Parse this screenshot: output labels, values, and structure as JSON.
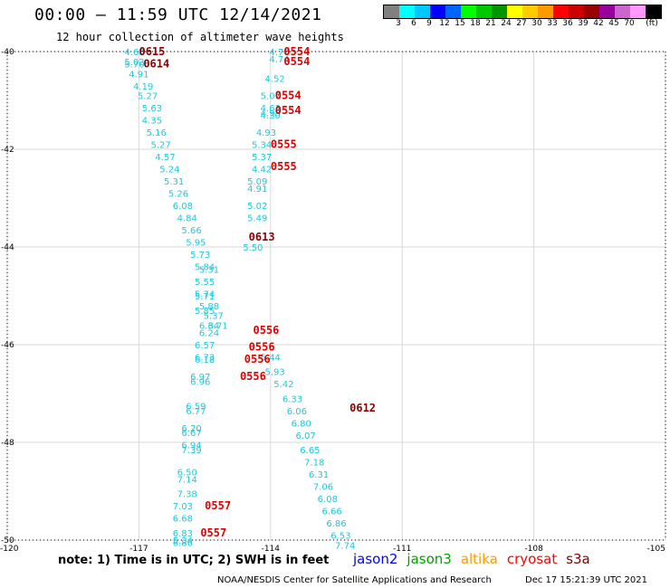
{
  "header": {
    "title": "00:00 – 11:59 UTC 12/14/2021",
    "subtitle": "12 hour collection of altimeter wave heights"
  },
  "color_scale": {
    "colors": [
      "#808080",
      "#00ffff",
      "#00c8ff",
      "#0000ff",
      "#0064ff",
      "#00ff00",
      "#00c800",
      "#009600",
      "#ffff00",
      "#ffcc00",
      "#ff9900",
      "#ff0000",
      "#cc0000",
      "#990000",
      "#990099",
      "#cc66cc",
      "#ff99ff",
      "#000000"
    ],
    "labels": [
      "3",
      "6",
      "9",
      "12",
      "15",
      "18",
      "21",
      "24",
      "27",
      "30",
      "33",
      "36",
      "39",
      "42",
      "45",
      "70",
      "(ft)"
    ]
  },
  "chart_data": {
    "type": "scatter",
    "title": "00:00 – 11:59 UTC 12/14/2021",
    "subtitle": "12 hour collection of altimeter wave heights",
    "xlabel": "",
    "ylabel": "",
    "xlim": [
      -120,
      -105
    ],
    "ylim": [
      -50,
      -40
    ],
    "x_ticks": [
      "-120",
      "-117",
      "-114",
      "-111",
      "-108",
      "-105"
    ],
    "y_ticks": [
      "-40",
      "-42",
      "-44",
      "-46",
      "-48",
      "-50"
    ],
    "grid": true,
    "unit": "feet",
    "series": [
      {
        "name": "jason2",
        "color": "#1ec8dc",
        "points": [
          {
            "x": -117.1,
            "y": -40.0,
            "v": "4.68"
          },
          {
            "x": -117.1,
            "y": -40.2,
            "v": "5.02"
          },
          {
            "x": -117.1,
            "y": -40.25,
            "v": "5.70"
          },
          {
            "x": -117.0,
            "y": -40.45,
            "v": "4.91"
          },
          {
            "x": -116.9,
            "y": -40.7,
            "v": "4.19"
          },
          {
            "x": -116.8,
            "y": -40.9,
            "v": "5.27"
          },
          {
            "x": -116.7,
            "y": -41.15,
            "v": "5.63"
          },
          {
            "x": -116.7,
            "y": -41.4,
            "v": "4.35"
          },
          {
            "x": -116.6,
            "y": -41.65,
            "v": "5.16"
          },
          {
            "x": -116.5,
            "y": -41.9,
            "v": "5.27"
          },
          {
            "x": -116.4,
            "y": -42.15,
            "v": "4.57"
          },
          {
            "x": -116.3,
            "y": -42.4,
            "v": "5.24"
          },
          {
            "x": -116.2,
            "y": -42.65,
            "v": "5.31"
          },
          {
            "x": -116.1,
            "y": -42.9,
            "v": "5.26"
          },
          {
            "x": -116.0,
            "y": -43.15,
            "v": "6.08"
          },
          {
            "x": -115.9,
            "y": -43.4,
            "v": "4.84"
          },
          {
            "x": -115.8,
            "y": -43.65,
            "v": "5.66"
          },
          {
            "x": -115.7,
            "y": -43.9,
            "v": "5.95"
          },
          {
            "x": -115.6,
            "y": -44.15,
            "v": "5.73"
          },
          {
            "x": -115.5,
            "y": -44.4,
            "v": "5.84"
          },
          {
            "x": -115.4,
            "y": -44.45,
            "v": "5.31"
          },
          {
            "x": -115.5,
            "y": -44.7,
            "v": "5.55"
          },
          {
            "x": -115.5,
            "y": -44.95,
            "v": "5.74"
          },
          {
            "x": -115.5,
            "y": -45.0,
            "v": "5.71"
          },
          {
            "x": -115.4,
            "y": -45.2,
            "v": "5.88"
          },
          {
            "x": -115.5,
            "y": -45.3,
            "v": "5.85"
          },
          {
            "x": -115.3,
            "y": -45.4,
            "v": "5.37"
          },
          {
            "x": -115.4,
            "y": -45.6,
            "v": "6.34"
          },
          {
            "x": -115.4,
            "y": -45.75,
            "v": "6.24"
          },
          {
            "x": -115.2,
            "y": -45.6,
            "v": "6.71"
          },
          {
            "x": -115.5,
            "y": -46.0,
            "v": "6.57"
          },
          {
            "x": -115.5,
            "y": -46.25,
            "v": "6.73"
          },
          {
            "x": -115.5,
            "y": -46.3,
            "v": "6.18"
          },
          {
            "x": -115.6,
            "y": -46.65,
            "v": "6.97"
          },
          {
            "x": -115.6,
            "y": -46.75,
            "v": "6.96"
          },
          {
            "x": -115.7,
            "y": -47.25,
            "v": "6.59"
          },
          {
            "x": -115.7,
            "y": -47.35,
            "v": "6.77"
          },
          {
            "x": -115.8,
            "y": -47.7,
            "v": "6.20"
          },
          {
            "x": -115.8,
            "y": -47.8,
            "v": "6.67"
          },
          {
            "x": -115.8,
            "y": -48.05,
            "v": "6.94"
          },
          {
            "x": -115.8,
            "y": -48.15,
            "v": "7.39"
          },
          {
            "x": -115.9,
            "y": -48.6,
            "v": "6.50"
          },
          {
            "x": -115.9,
            "y": -48.75,
            "v": "7.14"
          },
          {
            "x": -115.9,
            "y": -49.05,
            "v": "7.38"
          },
          {
            "x": -116.0,
            "y": -49.3,
            "v": "7.03"
          },
          {
            "x": -116.0,
            "y": -49.55,
            "v": "6.68"
          },
          {
            "x": -116.0,
            "y": -49.85,
            "v": "6.83"
          },
          {
            "x": -116.0,
            "y": -50.0,
            "v": "5.34"
          },
          {
            "x": -116.0,
            "y": -50.05,
            "v": "6.86"
          }
        ]
      },
      {
        "name": "jason3",
        "color": "#1ec8dc",
        "points": [
          {
            "x": -113.8,
            "y": -40.0,
            "v": "4.70"
          },
          {
            "x": -113.8,
            "y": -40.15,
            "v": "4.74"
          },
          {
            "x": -113.9,
            "y": -40.55,
            "v": "4.52"
          },
          {
            "x": -114.0,
            "y": -40.9,
            "v": "5.07"
          },
          {
            "x": -114.0,
            "y": -41.15,
            "v": "4.63"
          },
          {
            "x": -114.0,
            "y": -41.25,
            "v": "4.98"
          },
          {
            "x": -114.0,
            "y": -41.3,
            "v": "4.30"
          },
          {
            "x": -114.1,
            "y": -41.65,
            "v": "4.93"
          },
          {
            "x": -114.2,
            "y": -41.9,
            "v": "5.34"
          },
          {
            "x": -114.2,
            "y": -42.15,
            "v": "5.37"
          },
          {
            "x": -114.2,
            "y": -42.4,
            "v": "4.42"
          },
          {
            "x": -114.3,
            "y": -42.65,
            "v": "5.09"
          },
          {
            "x": -114.3,
            "y": -42.8,
            "v": "4.91"
          },
          {
            "x": -114.3,
            "y": -43.15,
            "v": "5.02"
          },
          {
            "x": -114.3,
            "y": -43.4,
            "v": "5.49"
          },
          {
            "x": -114.4,
            "y": -44.0,
            "v": "5.50"
          },
          {
            "x": -114.0,
            "y": -46.25,
            "v": "5.44"
          },
          {
            "x": -113.9,
            "y": -46.55,
            "v": "5.93"
          },
          {
            "x": -113.7,
            "y": -46.8,
            "v": "5.42"
          },
          {
            "x": -113.5,
            "y": -47.1,
            "v": "6.33"
          },
          {
            "x": -113.4,
            "y": -47.35,
            "v": "6.06"
          },
          {
            "x": -113.3,
            "y": -47.6,
            "v": "6.80"
          },
          {
            "x": -113.2,
            "y": -47.85,
            "v": "6.07"
          },
          {
            "x": -113.1,
            "y": -48.15,
            "v": "6.65"
          },
          {
            "x": -113.0,
            "y": -48.4,
            "v": "7.18"
          },
          {
            "x": -112.9,
            "y": -48.65,
            "v": "6.31"
          },
          {
            "x": -112.8,
            "y": -48.9,
            "v": "7.06"
          },
          {
            "x": -112.7,
            "y": -49.15,
            "v": "6.08"
          },
          {
            "x": -112.6,
            "y": -49.4,
            "v": "6.66"
          },
          {
            "x": -112.5,
            "y": -49.65,
            "v": "6.86"
          },
          {
            "x": -112.4,
            "y": -49.9,
            "v": "6.53"
          },
          {
            "x": -112.3,
            "y": -50.1,
            "v": "7.74"
          }
        ]
      }
    ],
    "pass_labels": [
      {
        "text": "0615",
        "color": "#8b0000",
        "x": -116.7,
        "y": -40.0
      },
      {
        "text": "0614",
        "color": "#8b0000",
        "x": -116.6,
        "y": -40.25
      },
      {
        "text": "0554",
        "color": "#e00000",
        "x": -113.4,
        "y": -40.0
      },
      {
        "text": "0554",
        "color": "#e00000",
        "x": -113.4,
        "y": -40.2
      },
      {
        "text": "0554",
        "color": "#e00000",
        "x": -113.6,
        "y": -40.9
      },
      {
        "text": "0554",
        "color": "#e00000",
        "x": -113.6,
        "y": -41.2
      },
      {
        "text": "0555",
        "color": "#e00000",
        "x": -113.7,
        "y": -41.9
      },
      {
        "text": "0555",
        "color": "#e00000",
        "x": -113.7,
        "y": -42.35
      },
      {
        "text": "0613",
        "color": "#8b0000",
        "x": -114.2,
        "y": -43.8
      },
      {
        "text": "0556",
        "color": "#e00000",
        "x": -114.1,
        "y": -45.7
      },
      {
        "text": "0556",
        "color": "#e00000",
        "x": -114.2,
        "y": -46.05
      },
      {
        "text": "0556",
        "color": "#e00000",
        "x": -114.3,
        "y": -46.3
      },
      {
        "text": "0556",
        "color": "#e00000",
        "x": -114.4,
        "y": -46.65
      },
      {
        "text": "0612",
        "color": "#8b0000",
        "x": -111.9,
        "y": -47.3
      },
      {
        "text": "0557",
        "color": "#e00000",
        "x": -115.2,
        "y": -49.3
      },
      {
        "text": "0557",
        "color": "#e00000",
        "x": -115.3,
        "y": -49.85
      }
    ]
  },
  "footer": {
    "note": "note:  1) Time is in UTC;  2) SWH is in feet",
    "legend": [
      {
        "name": "jason2",
        "color": "#0000ff"
      },
      {
        "name": "jason3",
        "color": "#00a000"
      },
      {
        "name": "altika",
        "color": "#ff9900"
      },
      {
        "name": "cryosat",
        "color": "#ff0000"
      },
      {
        "name": "s3a",
        "color": "#800000"
      }
    ],
    "center": "NOAA/NESDIS Center for Satellite Applications and Research",
    "timestamp": "Dec 17 15:21:39 UTC 2021"
  }
}
